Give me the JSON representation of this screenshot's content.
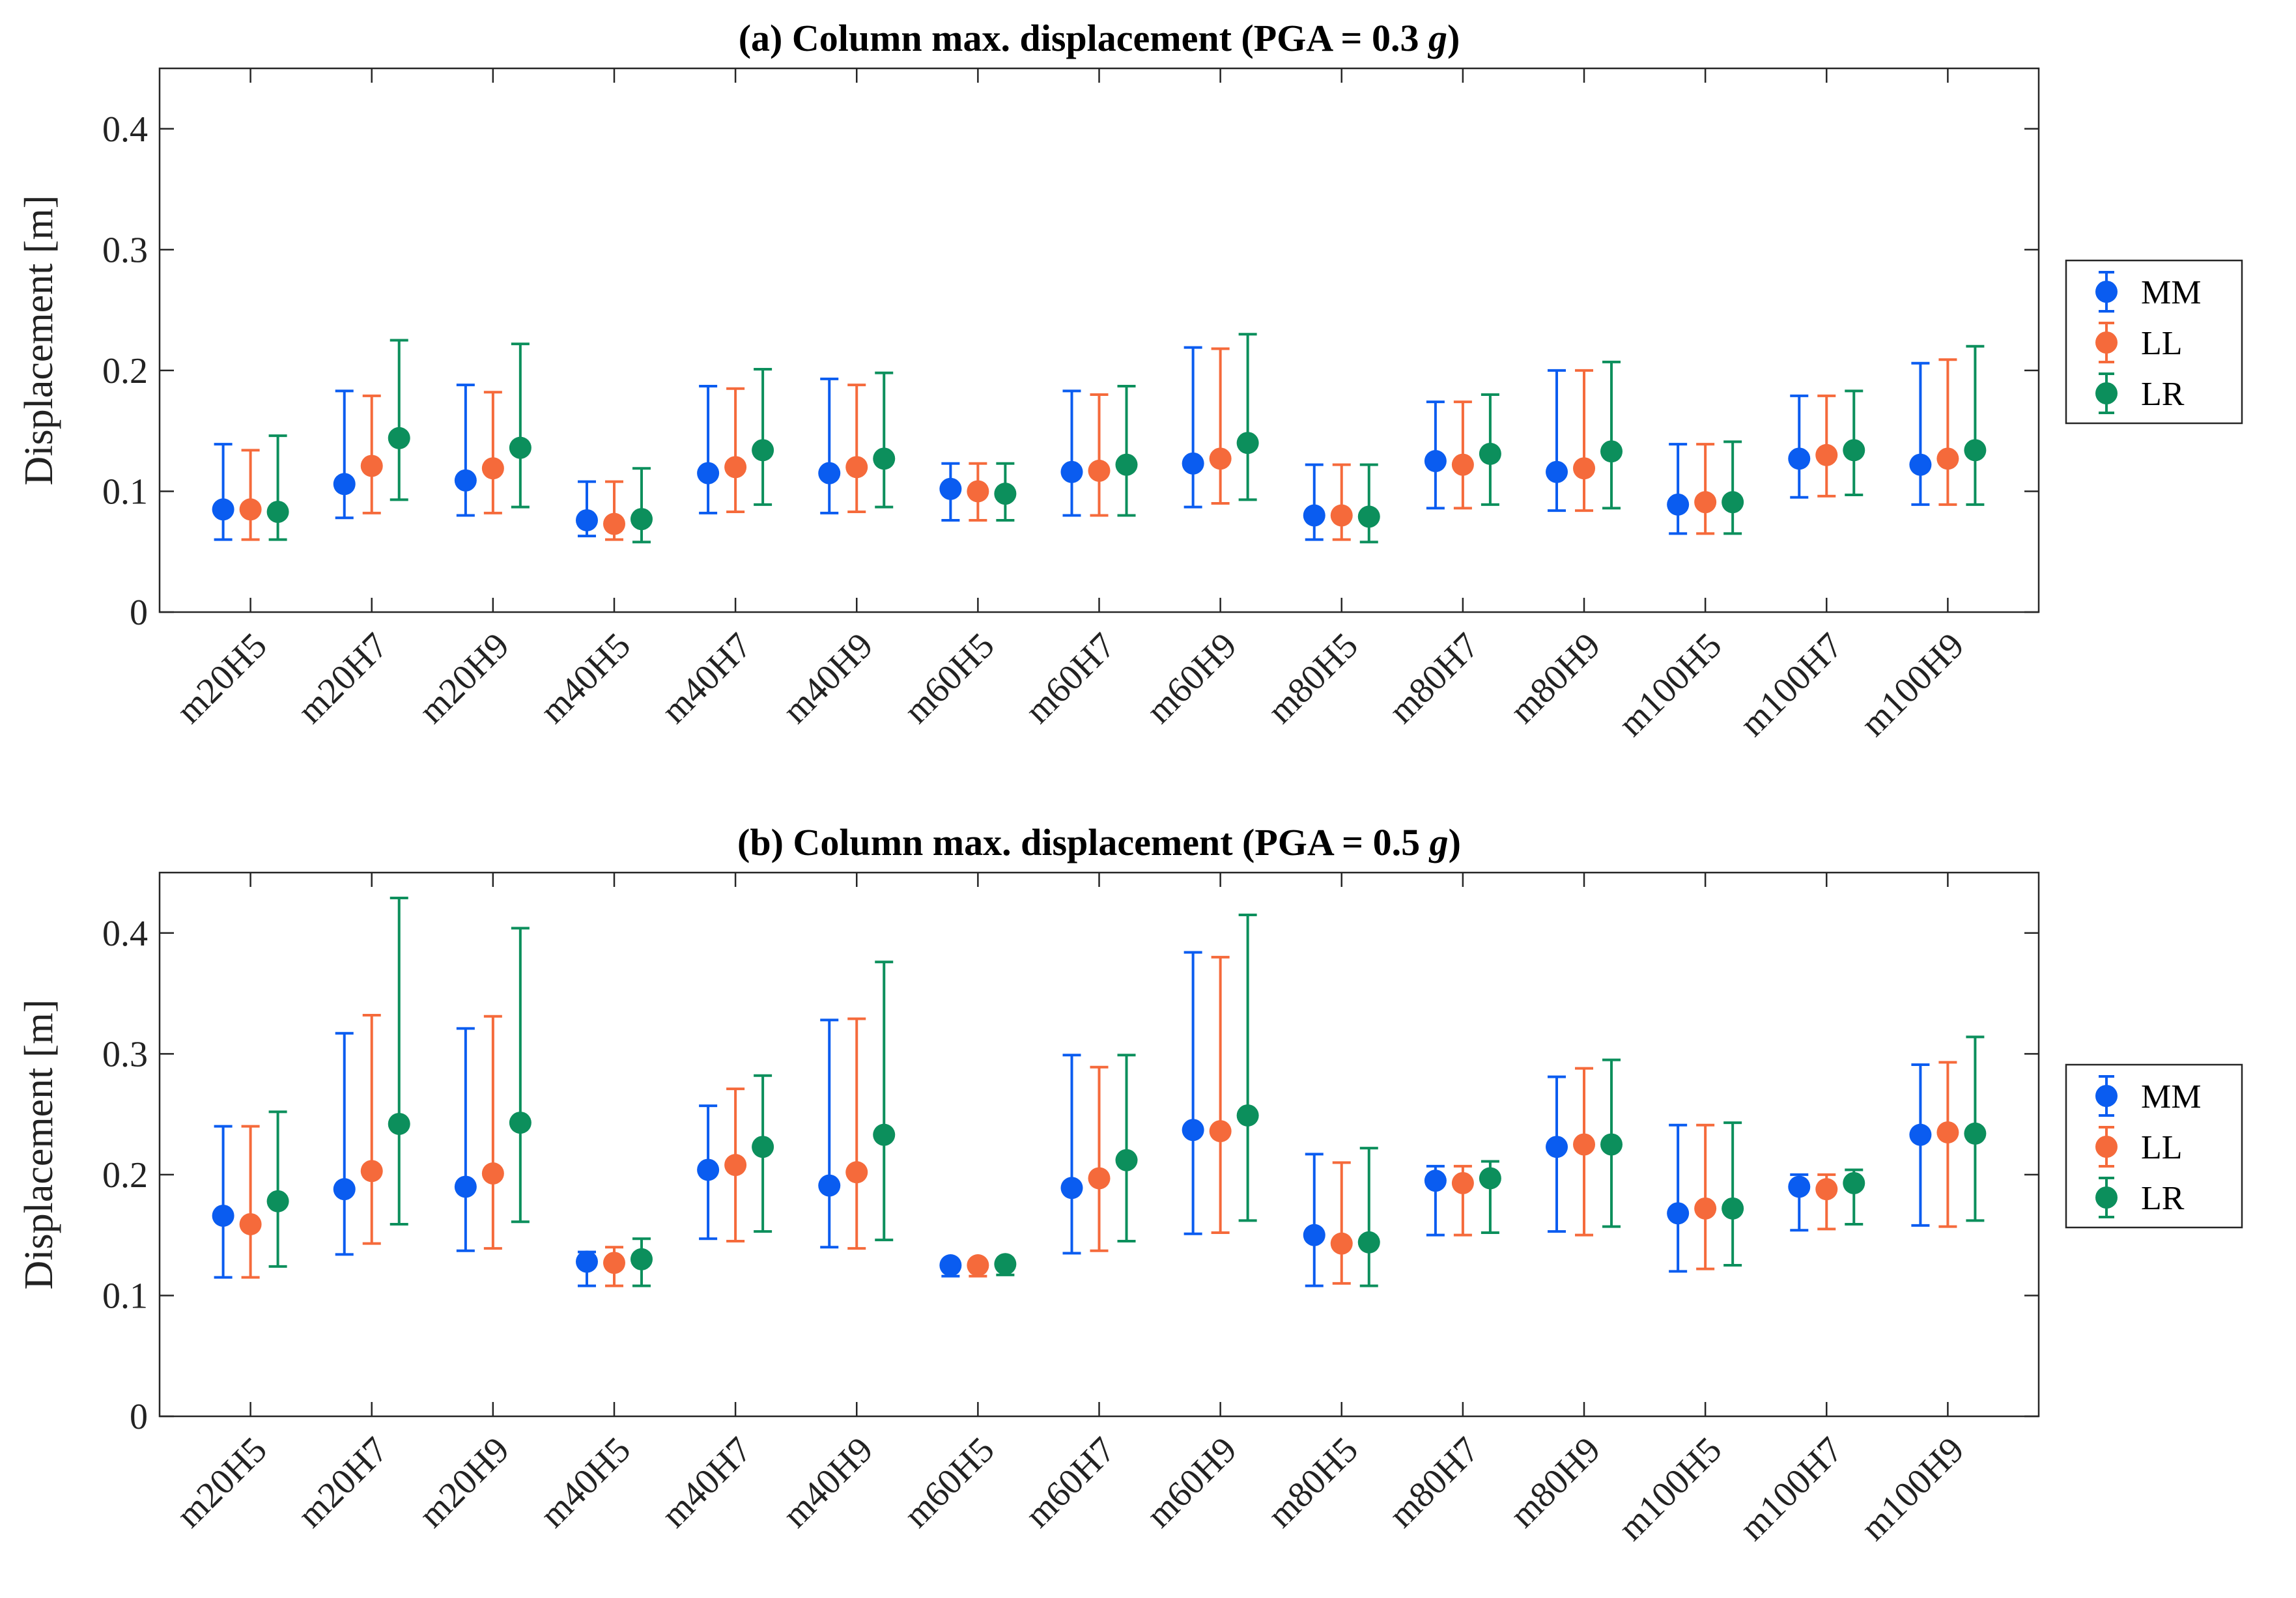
{
  "colors": {
    "MM": "#0a5cf0",
    "LL": "#f56a3b",
    "LR": "#0c8f5c"
  },
  "chart_data": [
    {
      "type": "scatter",
      "title": "(a) Column max. displacement (PGA = 0.3 ",
      "title_g": "g",
      "title_end": ")",
      "ylabel": "Displacement [m]",
      "xlabel": "",
      "ylim": [
        0,
        0.45
      ],
      "yticks": [
        "0",
        "0.1",
        "0.2",
        "0.3",
        "0.4"
      ],
      "grid": false,
      "legend_position": "right",
      "categories": [
        "m20H5",
        "m20H7",
        "m20H9",
        "m40H5",
        "m40H7",
        "m40H9",
        "m60H5",
        "m60H7",
        "m60H9",
        "m80H5",
        "m80H7",
        "m80H9",
        "m100H5",
        "m100H7",
        "m100H9"
      ],
      "series": [
        {
          "name": "MM",
          "values": [
            0.085,
            0.106,
            0.109,
            0.076,
            0.115,
            0.115,
            0.102,
            0.116,
            0.123,
            0.08,
            0.125,
            0.116,
            0.089,
            0.127,
            0.122
          ],
          "low": [
            0.06,
            0.078,
            0.08,
            0.063,
            0.082,
            0.082,
            0.076,
            0.08,
            0.087,
            0.06,
            0.086,
            0.084,
            0.065,
            0.095,
            0.089
          ],
          "high": [
            0.139,
            0.183,
            0.188,
            0.108,
            0.187,
            0.193,
            0.123,
            0.183,
            0.219,
            0.122,
            0.174,
            0.2,
            0.139,
            0.179,
            0.206
          ]
        },
        {
          "name": "LL",
          "values": [
            0.085,
            0.121,
            0.119,
            0.073,
            0.12,
            0.12,
            0.1,
            0.117,
            0.127,
            0.08,
            0.122,
            0.119,
            0.091,
            0.13,
            0.127
          ],
          "low": [
            0.06,
            0.082,
            0.082,
            0.06,
            0.083,
            0.083,
            0.076,
            0.08,
            0.09,
            0.06,
            0.086,
            0.084,
            0.065,
            0.096,
            0.089
          ],
          "high": [
            0.134,
            0.179,
            0.182,
            0.108,
            0.185,
            0.188,
            0.123,
            0.18,
            0.218,
            0.122,
            0.174,
            0.2,
            0.139,
            0.179,
            0.209
          ]
        },
        {
          "name": "LR",
          "values": [
            0.083,
            0.144,
            0.136,
            0.077,
            0.134,
            0.127,
            0.098,
            0.122,
            0.14,
            0.079,
            0.131,
            0.133,
            0.091,
            0.134,
            0.134
          ],
          "low": [
            0.06,
            0.093,
            0.087,
            0.058,
            0.089,
            0.087,
            0.076,
            0.08,
            0.093,
            0.058,
            0.089,
            0.086,
            0.065,
            0.097,
            0.089
          ],
          "high": [
            0.146,
            0.225,
            0.222,
            0.119,
            0.201,
            0.198,
            0.123,
            0.187,
            0.23,
            0.122,
            0.18,
            0.207,
            0.141,
            0.183,
            0.22
          ]
        }
      ]
    },
    {
      "type": "scatter",
      "title": "(b) Column max. displacement (PGA = 0.5 ",
      "title_g": "g",
      "title_end": ")",
      "ylabel": "Displacement [m]",
      "xlabel": "",
      "ylim": [
        0,
        0.45
      ],
      "yticks": [
        "0",
        "0.1",
        "0.2",
        "0.3",
        "0.4"
      ],
      "grid": false,
      "legend_position": "right",
      "categories": [
        "m20H5",
        "m20H7",
        "m20H9",
        "m40H5",
        "m40H7",
        "m40H9",
        "m60H5",
        "m60H7",
        "m60H9",
        "m80H5",
        "m80H7",
        "m80H9",
        "m100H5",
        "m100H7",
        "m100H9"
      ],
      "series": [
        {
          "name": "MM",
          "values": [
            0.166,
            0.188,
            0.19,
            0.128,
            0.204,
            0.191,
            0.125,
            0.189,
            0.237,
            0.15,
            0.195,
            0.223,
            0.168,
            0.19,
            0.233
          ],
          "low": [
            0.115,
            0.134,
            0.137,
            0.108,
            0.147,
            0.14,
            0.116,
            0.135,
            0.151,
            0.108,
            0.15,
            0.153,
            0.12,
            0.154,
            0.158
          ],
          "high": [
            0.24,
            0.317,
            0.321,
            0.136,
            0.257,
            0.328,
            0.128,
            0.299,
            0.384,
            0.217,
            0.207,
            0.281,
            0.241,
            0.2,
            0.291
          ]
        },
        {
          "name": "LL",
          "values": [
            0.159,
            0.203,
            0.201,
            0.127,
            0.208,
            0.202,
            0.125,
            0.197,
            0.236,
            0.143,
            0.193,
            0.225,
            0.172,
            0.188,
            0.235
          ],
          "low": [
            0.115,
            0.143,
            0.139,
            0.108,
            0.145,
            0.139,
            0.116,
            0.137,
            0.152,
            0.11,
            0.15,
            0.15,
            0.122,
            0.155,
            0.157
          ],
          "high": [
            0.24,
            0.332,
            0.331,
            0.14,
            0.271,
            0.329,
            0.128,
            0.289,
            0.38,
            0.21,
            0.207,
            0.288,
            0.241,
            0.2,
            0.293
          ]
        },
        {
          "name": "LR",
          "values": [
            0.178,
            0.242,
            0.243,
            0.13,
            0.223,
            0.233,
            0.126,
            0.212,
            0.249,
            0.144,
            0.197,
            0.225,
            0.172,
            0.193,
            0.234
          ],
          "low": [
            0.124,
            0.159,
            0.161,
            0.108,
            0.153,
            0.146,
            0.117,
            0.145,
            0.162,
            0.108,
            0.152,
            0.157,
            0.125,
            0.159,
            0.162
          ],
          "high": [
            0.252,
            0.429,
            0.404,
            0.147,
            0.282,
            0.376,
            0.128,
            0.299,
            0.415,
            0.222,
            0.211,
            0.295,
            0.243,
            0.204,
            0.314
          ]
        }
      ]
    }
  ]
}
